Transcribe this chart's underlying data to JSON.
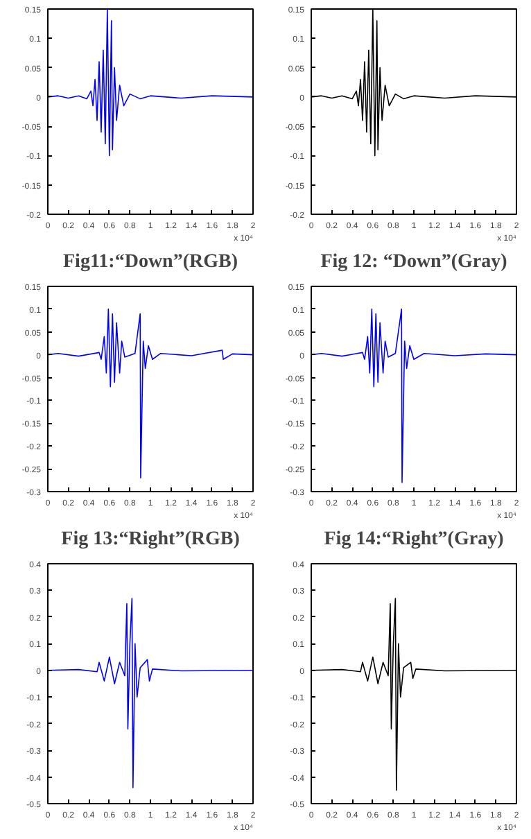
{
  "chart_data": [
    {
      "type": "line",
      "title": "Fig11:“Down”(RGB)",
      "annotations": [
        "x 10⁴"
      ],
      "color": "#0000ff",
      "xlim": [
        0,
        2
      ],
      "ylim": [
        -0.2,
        0.15
      ],
      "xticks": [
        0,
        0.2,
        0.4,
        0.6,
        0.8,
        1,
        1.2,
        1.4,
        1.6,
        1.8,
        2
      ],
      "yticks": [
        -0.2,
        -0.15,
        -0.1,
        -0.05,
        0,
        0.05,
        0.1,
        0.15
      ],
      "x": [
        0,
        0.1,
        0.2,
        0.3,
        0.38,
        0.42,
        0.44,
        0.46,
        0.48,
        0.5,
        0.52,
        0.54,
        0.56,
        0.58,
        0.6,
        0.62,
        0.63,
        0.65,
        0.67,
        0.7,
        0.74,
        0.8,
        0.9,
        1.0,
        1.3,
        1.6,
        2
      ],
      "values": [
        0,
        0.002,
        -0.002,
        0.002,
        -0.003,
        0.01,
        -0.015,
        0.03,
        -0.04,
        0.06,
        -0.06,
        0.08,
        -0.08,
        0.15,
        -0.1,
        0.13,
        -0.09,
        0.05,
        -0.04,
        0.02,
        -0.015,
        0.005,
        -0.003,
        0.002,
        -0.002,
        0.002,
        0
      ]
    },
    {
      "type": "line",
      "title": "Fig 12: “Down”(Gray)",
      "annotations": [
        "x 10⁴"
      ],
      "color": "#000000",
      "xlim": [
        0,
        2
      ],
      "ylim": [
        -0.2,
        0.15
      ],
      "xticks": [
        0,
        0.2,
        0.4,
        0.6,
        0.8,
        1,
        1.2,
        1.4,
        1.6,
        1.8,
        2
      ],
      "yticks": [
        -0.2,
        -0.15,
        -0.1,
        -0.05,
        0,
        0.05,
        0.1,
        0.15
      ],
      "x": [
        0,
        0.1,
        0.2,
        0.3,
        0.4,
        0.44,
        0.46,
        0.48,
        0.5,
        0.52,
        0.54,
        0.56,
        0.58,
        0.6,
        0.62,
        0.64,
        0.65,
        0.67,
        0.69,
        0.72,
        0.76,
        0.82,
        0.9,
        1.0,
        1.3,
        1.6,
        2
      ],
      "values": [
        0,
        0.002,
        -0.002,
        0.002,
        -0.003,
        0.01,
        -0.015,
        0.03,
        -0.04,
        0.06,
        -0.06,
        0.08,
        -0.08,
        0.15,
        -0.1,
        0.13,
        -0.09,
        0.05,
        -0.04,
        0.02,
        -0.015,
        0.005,
        -0.003,
        0.002,
        -0.002,
        0.002,
        0
      ]
    },
    {
      "type": "line",
      "title": "Fig 13:“Right”(RGB)",
      "annotations": [
        "x 10⁴"
      ],
      "color": "#0000ff",
      "xlim": [
        0,
        2
      ],
      "ylim": [
        -0.3,
        0.15
      ],
      "xticks": [
        0,
        0.2,
        0.4,
        0.6,
        0.8,
        1,
        1.2,
        1.4,
        1.6,
        1.8,
        2
      ],
      "yticks": [
        -0.3,
        -0.25,
        -0.2,
        -0.15,
        -0.1,
        -0.05,
        0,
        0.05,
        0.1,
        0.15
      ],
      "x": [
        0,
        0.1,
        0.3,
        0.5,
        0.52,
        0.55,
        0.57,
        0.59,
        0.61,
        0.63,
        0.65,
        0.67,
        0.7,
        0.72,
        0.75,
        0.85,
        0.9,
        0.905,
        0.93,
        0.95,
        0.98,
        1.02,
        1.1,
        1.4,
        1.7,
        1.71,
        1.8,
        2
      ],
      "values": [
        0,
        0.003,
        -0.003,
        0.005,
        -0.01,
        0.04,
        -0.04,
        0.1,
        -0.07,
        0.09,
        -0.06,
        0.07,
        -0.04,
        0.03,
        -0.005,
        0.003,
        0.09,
        -0.27,
        0.03,
        -0.03,
        0.02,
        -0.01,
        0.003,
        -0.002,
        0.01,
        -0.01,
        0.002,
        0
      ]
    },
    {
      "type": "line",
      "title": "Fig 14:“Right”(Gray)",
      "annotations": [
        "x 10⁴"
      ],
      "color": "#0000ff",
      "xlim": [
        0,
        2
      ],
      "ylim": [
        -0.3,
        0.15
      ],
      "xticks": [
        0,
        0.2,
        0.4,
        0.6,
        0.8,
        1,
        1.2,
        1.4,
        1.6,
        1.8,
        2
      ],
      "yticks": [
        -0.3,
        -0.25,
        -0.2,
        -0.15,
        -0.1,
        -0.05,
        0,
        0.05,
        0.1,
        0.15
      ],
      "x": [
        0,
        0.1,
        0.3,
        0.5,
        0.52,
        0.55,
        0.57,
        0.59,
        0.61,
        0.63,
        0.65,
        0.67,
        0.7,
        0.72,
        0.75,
        0.82,
        0.88,
        0.885,
        0.91,
        0.93,
        0.96,
        1.0,
        1.1,
        1.4,
        1.7,
        2
      ],
      "values": [
        0,
        0.003,
        -0.003,
        0.005,
        -0.01,
        0.04,
        -0.04,
        0.1,
        -0.07,
        0.09,
        -0.06,
        0.07,
        -0.04,
        0.03,
        -0.005,
        0.003,
        0.1,
        -0.28,
        0.03,
        -0.03,
        0.02,
        -0.01,
        0.003,
        -0.002,
        0.002,
        0
      ]
    },
    {
      "type": "line",
      "annotations": [
        "x 10⁴"
      ],
      "color": "#0000ff",
      "xlim": [
        0,
        2
      ],
      "ylim": [
        -0.5,
        0.4
      ],
      "xticks": [
        0,
        0.2,
        0.4,
        0.6,
        0.8,
        1,
        1.2,
        1.4,
        1.6,
        1.8,
        2
      ],
      "yticks": [
        -0.5,
        -0.4,
        -0.3,
        -0.2,
        -0.1,
        0,
        0.1,
        0.2,
        0.3,
        0.4
      ],
      "x": [
        0,
        0.3,
        0.48,
        0.5,
        0.55,
        0.6,
        0.65,
        0.7,
        0.75,
        0.77,
        0.78,
        0.8,
        0.82,
        0.83,
        0.85,
        0.87,
        0.9,
        0.97,
        0.99,
        1.02,
        1.3,
        2
      ],
      "values": [
        0,
        0.003,
        -0.005,
        0.03,
        -0.04,
        0.05,
        -0.05,
        0.03,
        -0.02,
        0.25,
        -0.22,
        0.1,
        0.27,
        -0.44,
        0.1,
        -0.1,
        0.01,
        0.04,
        -0.04,
        0.005,
        -0.002,
        0
      ]
    },
    {
      "type": "line",
      "annotations": [
        "x 10⁴"
      ],
      "color": "#000000",
      "xlim": [
        0,
        2
      ],
      "ylim": [
        -0.5,
        0.4
      ],
      "xticks": [
        0,
        0.2,
        0.4,
        0.6,
        0.8,
        1,
        1.2,
        1.4,
        1.6,
        1.8,
        2
      ],
      "yticks": [
        -0.5,
        -0.4,
        -0.3,
        -0.2,
        -0.1,
        0,
        0.1,
        0.2,
        0.3,
        0.4
      ],
      "x": [
        0,
        0.3,
        0.48,
        0.5,
        0.55,
        0.6,
        0.65,
        0.7,
        0.75,
        0.77,
        0.78,
        0.8,
        0.82,
        0.83,
        0.85,
        0.87,
        0.9,
        0.97,
        0.99,
        1.02,
        1.3,
        2
      ],
      "values": [
        0,
        0.003,
        -0.005,
        0.03,
        -0.04,
        0.05,
        -0.05,
        0.03,
        -0.02,
        0.25,
        -0.22,
        0.1,
        0.27,
        -0.45,
        0.1,
        -0.1,
        0.01,
        0.03,
        -0.03,
        0.005,
        -0.002,
        0
      ]
    }
  ]
}
